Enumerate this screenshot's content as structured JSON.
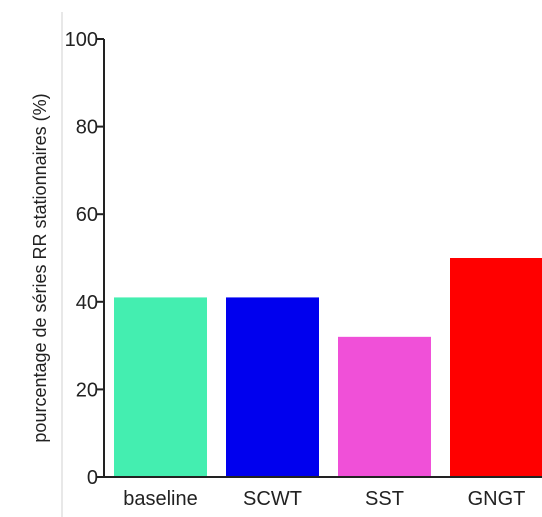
{
  "chart_data": {
    "type": "bar",
    "categories": [
      "baseline",
      "SCWT",
      "SST",
      "GNGT"
    ],
    "values": [
      41,
      41,
      32,
      50
    ],
    "colors": [
      "#44eeb0",
      "#0000ee",
      "#f050d8",
      "#ff0000"
    ],
    "xlabel": "",
    "ylabel": "pourcentage de séries RR stationnaires (%)",
    "ylim": [
      0,
      100
    ],
    "yticks": [
      0,
      20,
      40,
      60,
      80,
      100
    ],
    "grid": false,
    "legend": "none"
  }
}
